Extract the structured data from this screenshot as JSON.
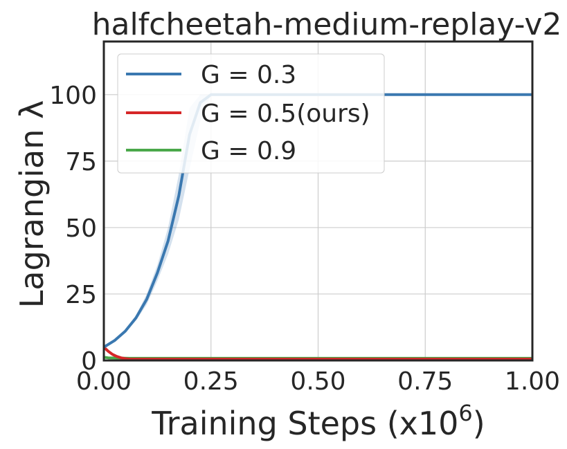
{
  "chart_data": {
    "type": "line",
    "title": "halfcheetah-medium-replay-v2",
    "xlabel": "Training Steps (x10",
    "xlabel_sup": "6",
    "xlabel_close": ")",
    "ylabel": "Lagrangian λ",
    "xlim": [
      0.0,
      1.0
    ],
    "ylim": [
      0,
      120
    ],
    "xticks": [
      0.0,
      0.25,
      0.5,
      0.75,
      1.0
    ],
    "xtick_labels": [
      "0.00",
      "0.25",
      "0.50",
      "0.75",
      "1.00"
    ],
    "yticks": [
      0,
      25,
      50,
      75,
      100
    ],
    "ytick_labels": [
      "0",
      "25",
      "50",
      "75",
      "100"
    ],
    "grid": true,
    "legend_position": "top-left",
    "series": [
      {
        "name": "G = 0.3",
        "color": "#3a78b0",
        "x": [
          0.0,
          0.025,
          0.05,
          0.075,
          0.1,
          0.125,
          0.15,
          0.175,
          0.2,
          0.225,
          0.25,
          0.5,
          0.75,
          1.0
        ],
        "y": [
          5,
          7.5,
          11,
          16,
          23,
          33,
          45,
          62,
          85,
          97,
          100,
          100,
          100,
          100
        ],
        "band_upper": [
          5,
          7.5,
          11.5,
          17,
          25,
          36,
          50,
          70,
          95,
          100,
          100,
          100,
          100,
          100
        ],
        "band_lower": [
          5,
          7.5,
          10.5,
          15,
          21,
          30,
          40,
          53,
          72,
          90,
          100,
          100,
          100,
          100
        ]
      },
      {
        "name": "G = 0.5(ours)",
        "color": "#d62728",
        "x": [
          0.0,
          0.01,
          0.02,
          0.03,
          0.04,
          0.05,
          0.06,
          0.1,
          0.5,
          1.0
        ],
        "y": [
          5,
          3.5,
          2.3,
          1.5,
          1.0,
          0.7,
          0.5,
          0.5,
          0.5,
          0.5
        ]
      },
      {
        "name": "G = 0.9",
        "color": "#4aa84a",
        "x": [
          0.0,
          0.01,
          0.03,
          0.06,
          0.1,
          0.5,
          1.0
        ],
        "y": [
          1.2,
          1.0,
          0.9,
          0.8,
          0.8,
          0.8,
          0.8
        ]
      }
    ]
  }
}
